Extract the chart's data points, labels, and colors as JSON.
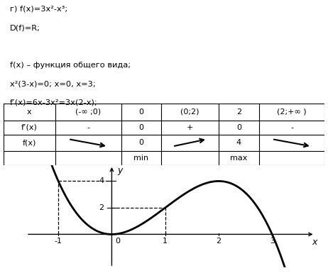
{
  "title_text": [
    "г) f(x)=3x²-x³;",
    "D(f)=R;",
    "",
    "f(x) – функция общего вида;",
    "x²(3-x)=0; x=0, x=3;",
    "f’(x)=6x-3x²=3x(2-x);"
  ],
  "table_cols": [
    "x",
    "(-∞ ;0)",
    "0",
    "(0;2)",
    "2",
    "(2;+∞ )"
  ],
  "table_row1": [
    "f’(x)",
    "-",
    "0",
    "+",
    "0",
    "-"
  ],
  "table_row2_label": "f(x)",
  "table_row2_vals": [
    "arrow_down",
    "0",
    "arrow_up",
    "4",
    "arrow_down"
  ],
  "table_row3": [
    "",
    "",
    "min",
    "",
    "max",
    ""
  ],
  "bg_color": "#ffffff",
  "text_color": "#000000",
  "graph_xlim": [
    -1.6,
    3.8
  ],
  "graph_ylim": [
    -2.5,
    5.2
  ],
  "x_ticks": [
    -1,
    0,
    1,
    2,
    3
  ],
  "y_ticks": [
    2,
    4
  ]
}
